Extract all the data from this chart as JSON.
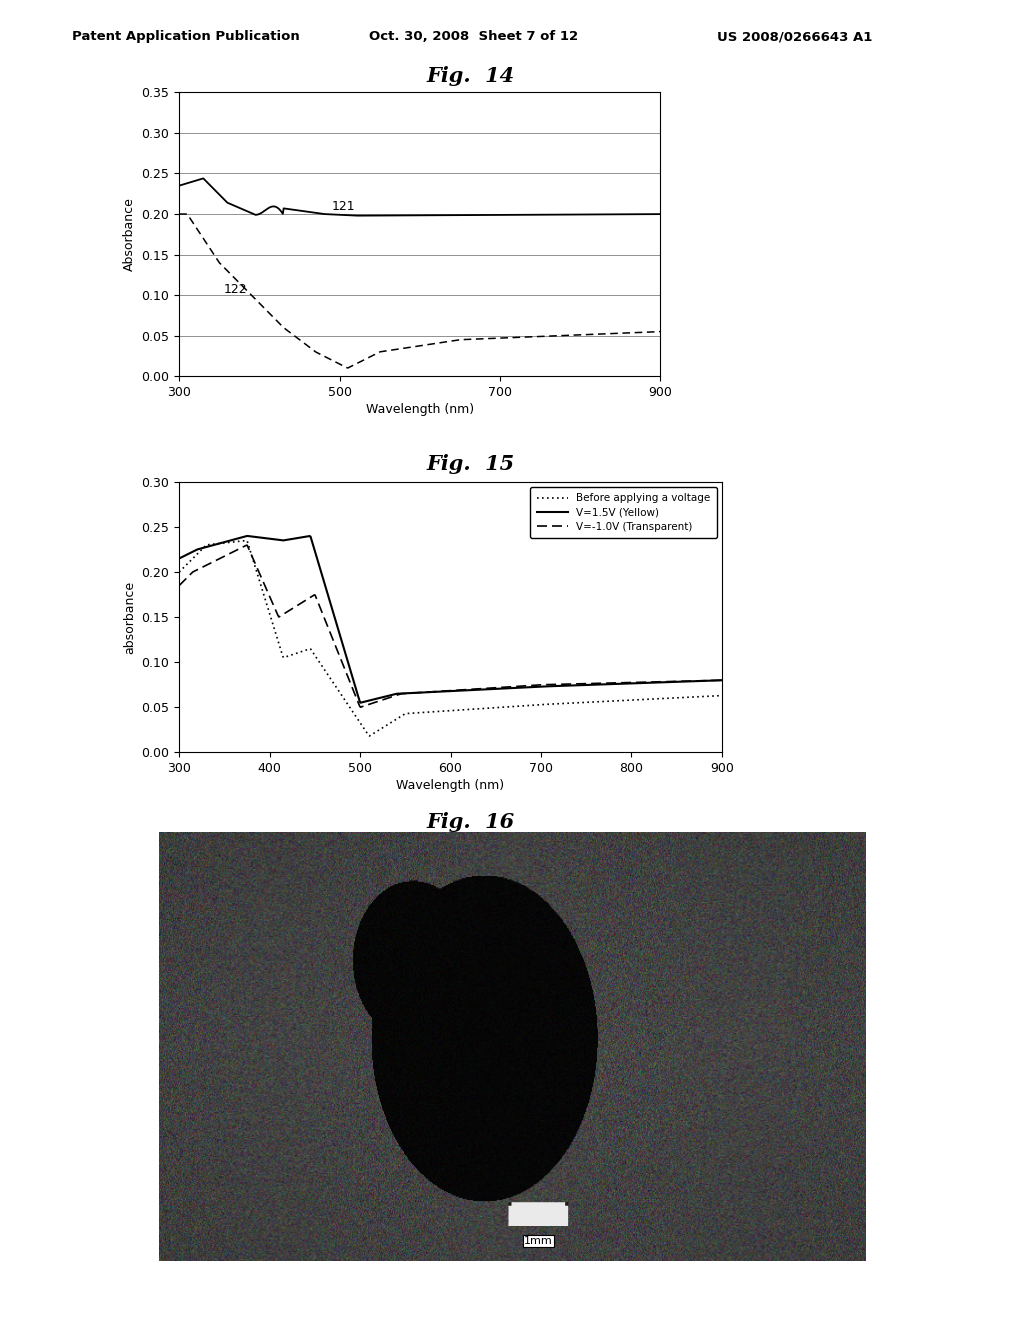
{
  "header_left": "Patent Application Publication",
  "header_mid": "Oct. 30, 2008  Sheet 7 of 12",
  "header_right": "US 2008/0266643 A1",
  "fig14_title": "Fig.  14",
  "fig15_title": "Fig.  15",
  "fig16_title": "Fig.  16",
  "fig14_ylabel": "Absorbance",
  "fig14_xlabel": "Wavelength (nm)",
  "fig14_xlim": [
    300,
    900
  ],
  "fig14_ylim": [
    0,
    0.35
  ],
  "fig14_yticks": [
    0,
    0.05,
    0.1,
    0.15,
    0.2,
    0.25,
    0.3,
    0.35
  ],
  "fig14_xticks": [
    300,
    500,
    700,
    900
  ],
  "fig15_ylabel": "absorbance",
  "fig15_xlabel": "Wavelength (nm)",
  "fig15_xlim": [
    300,
    900
  ],
  "fig15_ylim": [
    0,
    0.3
  ],
  "fig15_yticks": [
    0,
    0.05,
    0.1,
    0.15,
    0.2,
    0.25,
    0.3
  ],
  "fig15_xticks": [
    300,
    400,
    500,
    600,
    700,
    800,
    900
  ],
  "legend15": [
    "Before applying a voltage",
    "V=1.5V (Yellow)",
    "V=-1.0V (Transparent)"
  ],
  "annotation121": "121",
  "annotation122": "122",
  "bg_color": "#ffffff"
}
